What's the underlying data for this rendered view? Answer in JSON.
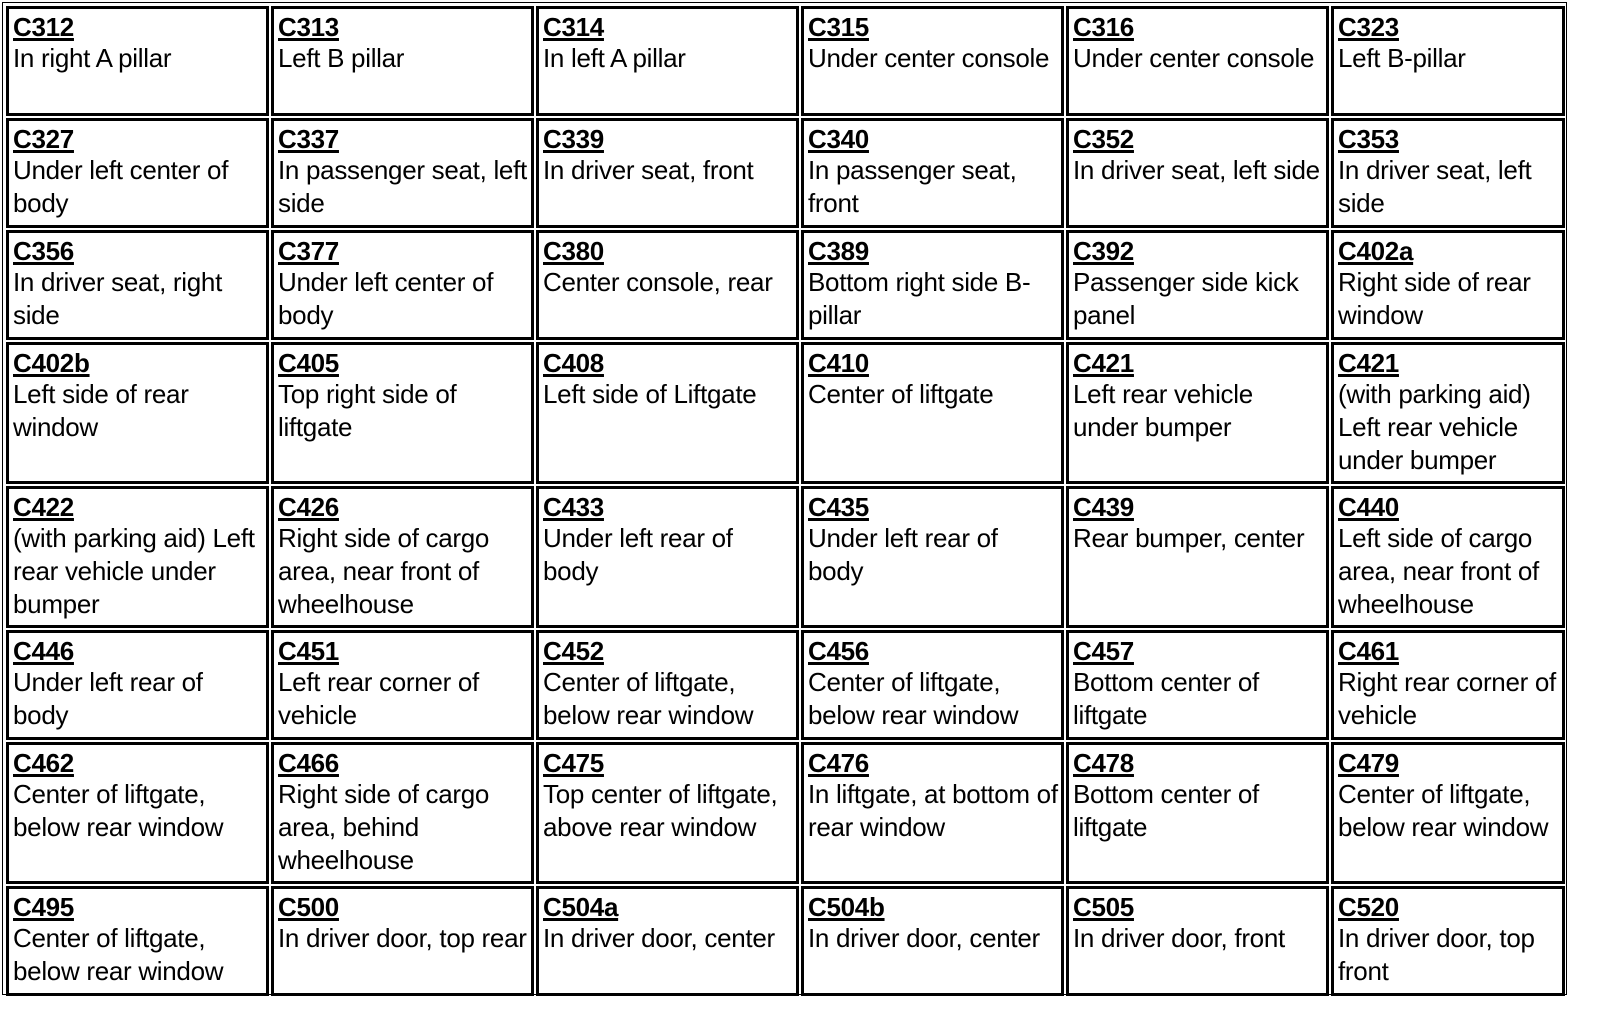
{
  "connectors": [
    {
      "code": "C312",
      "location": "In right A pillar"
    },
    {
      "code": "C313",
      "location": "Left B pillar"
    },
    {
      "code": "C314",
      "location": "In left A pillar"
    },
    {
      "code": "C315",
      "location": "Under center console"
    },
    {
      "code": "C316",
      "location": "Under center console"
    },
    {
      "code": "C323",
      "location": "Left B-pillar"
    },
    {
      "code": "C327",
      "location": "Under left center of body"
    },
    {
      "code": "C337",
      "location": "In passenger seat, left side"
    },
    {
      "code": "C339",
      "location": "In driver seat, front"
    },
    {
      "code": "C340",
      "location": "In passenger seat, front"
    },
    {
      "code": "C352",
      "location": "In driver seat, left side"
    },
    {
      "code": "C353",
      "location": "In driver seat, left side"
    },
    {
      "code": "C356",
      "location": "In driver seat, right side"
    },
    {
      "code": "C377",
      "location": "Under left center of body"
    },
    {
      "code": "C380",
      "location": "Center console, rear"
    },
    {
      "code": "C389",
      "location": "Bottom right side B-pillar"
    },
    {
      "code": "C392",
      "location": "Passenger side kick panel"
    },
    {
      "code": "C402a",
      "location": "Right side of rear window"
    },
    {
      "code": "C402b",
      "location": "Left side of rear window"
    },
    {
      "code": "C405",
      "location": "Top right side of liftgate"
    },
    {
      "code": "C408",
      "location": "Left side of Liftgate"
    },
    {
      "code": "C410",
      "location": "Center of liftgate"
    },
    {
      "code": "C421",
      "location": "Left rear vehicle under bumper"
    },
    {
      "code": "C421",
      "location": "(with parking aid) Left rear vehicle under bumper"
    },
    {
      "code": "C422",
      "location": "(with parking aid) Left rear vehicle under bumper"
    },
    {
      "code": "C426",
      "location": "Right side of cargo area, near front of wheelhouse"
    },
    {
      "code": "C433",
      "location": "Under left rear of body"
    },
    {
      "code": "C435",
      "location": "Under left rear of body"
    },
    {
      "code": "C439",
      "location": "Rear bumper, center"
    },
    {
      "code": "C440",
      "location": "Left side of cargo area, near front of wheelhouse"
    },
    {
      "code": "C446",
      "location": "Under left rear of body"
    },
    {
      "code": "C451",
      "location": "Left rear corner of vehicle"
    },
    {
      "code": "C452",
      "location": "Center of liftgate, below rear window"
    },
    {
      "code": "C456",
      "location": "Center of liftgate, below rear window"
    },
    {
      "code": "C457",
      "location": "Bottom center of liftgate"
    },
    {
      "code": "C461",
      "location": "Right rear corner of vehicle"
    },
    {
      "code": "C462",
      "location": "Center of liftgate, below rear window"
    },
    {
      "code": "C466",
      "location": "Right side of cargo area, behind wheelhouse"
    },
    {
      "code": "C475",
      "location": "Top center of liftgate, above rear window"
    },
    {
      "code": "C476",
      "location": "In liftgate, at bottom of rear window"
    },
    {
      "code": "C478",
      "location": "Bottom center of liftgate"
    },
    {
      "code": "C479",
      "location": "Center of liftgate, below rear window"
    },
    {
      "code": "C495",
      "location": "Center of liftgate, below rear window"
    },
    {
      "code": "C500",
      "location": "In driver door, top rear"
    },
    {
      "code": "C504a",
      "location": "In driver door, center"
    },
    {
      "code": "C504b",
      "location": "In driver door, center"
    },
    {
      "code": "C505",
      "location": "In driver door, front"
    },
    {
      "code": "C520",
      "location": "In driver door, top front"
    }
  ]
}
